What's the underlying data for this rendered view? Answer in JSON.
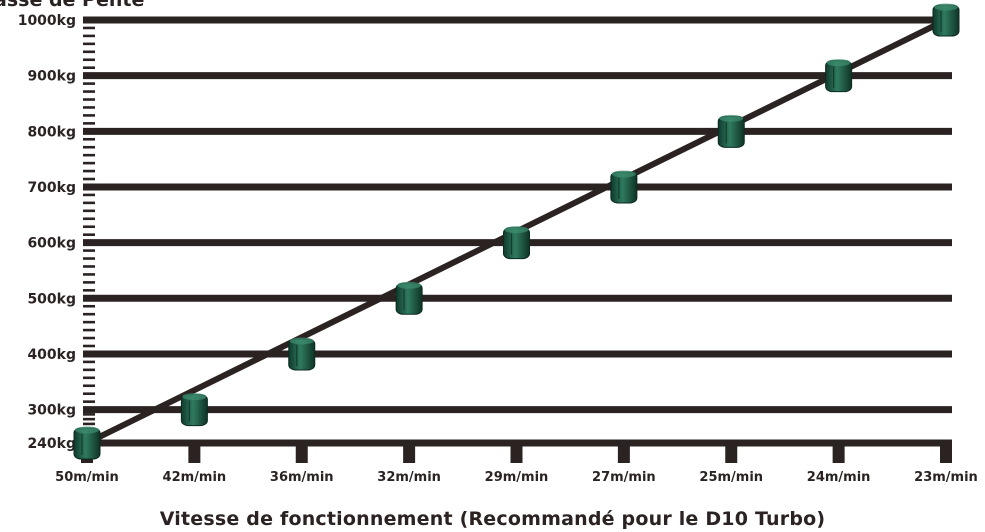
{
  "chart_data": {
    "type": "line",
    "title": "asse de Pente",
    "xlabel": "Vitesse de fonctionnement (Recommandé pour le D10 Turbo)",
    "ylabel": "",
    "categories": [
      "50m/min",
      "42m/min",
      "36m/min",
      "32m/min",
      "29m/min",
      "27m/min",
      "25m/min",
      "24m/min",
      "23m/min"
    ],
    "y_ticks": [
      "240kg",
      "300kg",
      "400kg",
      "500kg",
      "600kg",
      "700kg",
      "800kg",
      "900kg",
      "1000kg"
    ],
    "y_tick_values": [
      240,
      300,
      400,
      500,
      600,
      700,
      800,
      900,
      1000
    ],
    "series": [
      {
        "values": [
          240,
          300,
          400,
          500,
          600,
          700,
          800,
          900,
          1000
        ]
      }
    ],
    "ylim": [
      240,
      1000
    ],
    "grid": true,
    "colors": {
      "line": "#2b2322",
      "marker": "#1f5a45",
      "text": "#2b2322"
    }
  }
}
